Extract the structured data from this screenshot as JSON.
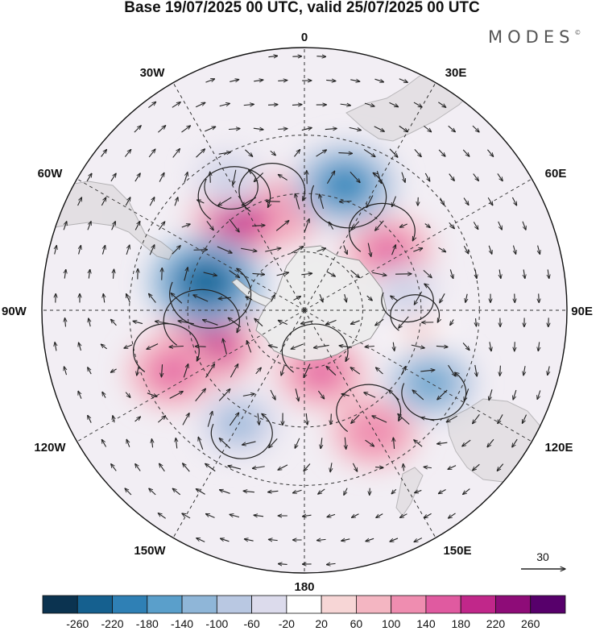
{
  "title": "Base 19/07/2025 00 UTC, valid 25/07/2025 00 UTC",
  "brand": {
    "name": "MODES",
    "mark": "©"
  },
  "meridian_labels": {
    "lon_0": "0",
    "lon_30E": "30E",
    "lon_60E": "60E",
    "lon_90E": "90E",
    "lon_120E": "120E",
    "lon_150E": "150E",
    "lon_180": "180",
    "lon_150W": "150W",
    "lon_120W": "120W",
    "lon_90W": "90W",
    "lon_60W": "60W",
    "lon_30W": "30W"
  },
  "reference_vector": {
    "value": "30"
  },
  "colorbar": {
    "labels": [
      "-260",
      "-220",
      "-180",
      "-140",
      "-100",
      "-60",
      "-20",
      "20",
      "60",
      "100",
      "140",
      "180",
      "220",
      "260"
    ],
    "colors": [
      "#0b3350",
      "#15608f",
      "#2f80b5",
      "#5a9fcb",
      "#8fb6d8",
      "#b9c8e2",
      "#dcdbec",
      "#ffffff",
      "#f7d6d6",
      "#f4b6c2",
      "#ef8db0",
      "#e05aa0",
      "#c1278a",
      "#8e0c78",
      "#57006b"
    ]
  },
  "anomaly_centers": [
    {
      "id": "pos-1",
      "lat": -55,
      "lon": -15,
      "value": 150
    },
    {
      "id": "pos-2",
      "lat": -52,
      "lon": -35,
      "value": 190
    },
    {
      "id": "pos-3",
      "lat": -55,
      "lon": 55,
      "value": 150
    },
    {
      "id": "pos-4",
      "lat": -55,
      "lon": -110,
      "value": 215
    },
    {
      "id": "pos-5",
      "lat": -40,
      "lon": -115,
      "value": 150
    },
    {
      "id": "pos-6",
      "lat": -68,
      "lon": 165,
      "value": 150
    },
    {
      "id": "pos-7",
      "lat": -42,
      "lon": 150,
      "value": 140
    },
    {
      "id": "pos-8",
      "lat": -50,
      "lon": 100,
      "value": 40
    },
    {
      "id": "neg-1",
      "lat": -45,
      "lon": 18,
      "value": -210
    },
    {
      "id": "neg-2",
      "lat": -55,
      "lon": -74,
      "value": -250
    },
    {
      "id": "neg-3",
      "lat": -55,
      "lon": 80,
      "value": -60
    },
    {
      "id": "neg-4",
      "lat": -45,
      "lon": -150,
      "value": -120
    },
    {
      "id": "neg-5",
      "lat": -40,
      "lon": 120,
      "value": -140
    },
    {
      "id": "neg-6",
      "lat": -38,
      "lon": -30,
      "value": -70
    }
  ]
}
